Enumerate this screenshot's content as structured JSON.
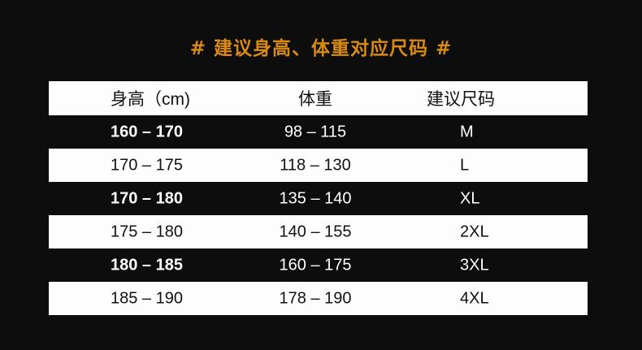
{
  "title": "# 建议身高、体重对应尺码 #",
  "colors": {
    "title": "#d98a12",
    "background": "#0d0d0d",
    "stripe": "#fdfdfd"
  },
  "headers": [
    "身高（cm)",
    "体重",
    "建议尺码"
  ],
  "rows": [
    {
      "height": "160 – 170",
      "weight": "98 – 115",
      "size": "M"
    },
    {
      "height": "170 – 175",
      "weight": "118 – 130",
      "size": "L"
    },
    {
      "height": "170 – 180",
      "weight": "135 – 140",
      "size": "XL"
    },
    {
      "height": "175 – 180",
      "weight": "140 – 155",
      "size": "2XL"
    },
    {
      "height": "180 – 185",
      "weight": "160 – 175",
      "size": "3XL"
    },
    {
      "height": "185 – 190",
      "weight": "178 – 190",
      "size": "4XL"
    }
  ]
}
